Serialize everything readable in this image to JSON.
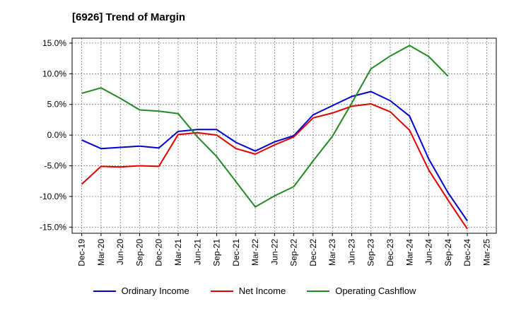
{
  "chart_data": {
    "type": "line",
    "title": "[6926]  Trend of Margin",
    "x": [
      "Dec-19",
      "Mar-20",
      "Jun-20",
      "Sep-20",
      "Dec-20",
      "Mar-21",
      "Jun-21",
      "Sep-21",
      "Dec-21",
      "Mar-22",
      "Jun-22",
      "Sep-22",
      "Dec-22",
      "Mar-23",
      "Jun-23",
      "Sep-23",
      "Dec-23",
      "Mar-24",
      "Jun-24",
      "Sep-24",
      "Dec-24",
      "Mar-25"
    ],
    "yticks": [
      "15.0%",
      "10.0%",
      "5.0%",
      "0.0%",
      "-5.0%",
      "-10.0%",
      "-15.0%"
    ],
    "ylim": [
      -16,
      15.8
    ],
    "grid": true,
    "legend_position": "bottom",
    "series": [
      {
        "name": "Ordinary Income",
        "color": "#0000cc",
        "values": [
          -0.8,
          -2.2,
          -2.0,
          -1.8,
          -2.1,
          0.6,
          0.9,
          0.9,
          -1.2,
          -2.6,
          -1.1,
          -0.1,
          3.3,
          4.8,
          6.3,
          7.1,
          5.6,
          3.1,
          -3.9,
          -9.4,
          -14.0,
          null
        ]
      },
      {
        "name": "Net Income",
        "color": "#dd0000",
        "values": [
          -8.0,
          -5.1,
          -5.2,
          -5.0,
          -5.1,
          0.1,
          0.4,
          0.0,
          -2.2,
          -3.1,
          -1.6,
          -0.3,
          2.8,
          3.6,
          4.7,
          5.1,
          3.8,
          0.8,
          -5.7,
          -10.6,
          -15.3,
          null
        ]
      },
      {
        "name": "Operating Cashflow",
        "color": "#228822",
        "values": [
          6.8,
          7.7,
          6.0,
          4.1,
          3.9,
          3.5,
          -0.3,
          -3.5,
          -7.6,
          -11.7,
          -9.9,
          -8.4,
          -4.2,
          -0.2,
          5.2,
          10.8,
          12.9,
          14.6,
          12.8,
          9.6,
          null,
          null
        ]
      }
    ]
  }
}
